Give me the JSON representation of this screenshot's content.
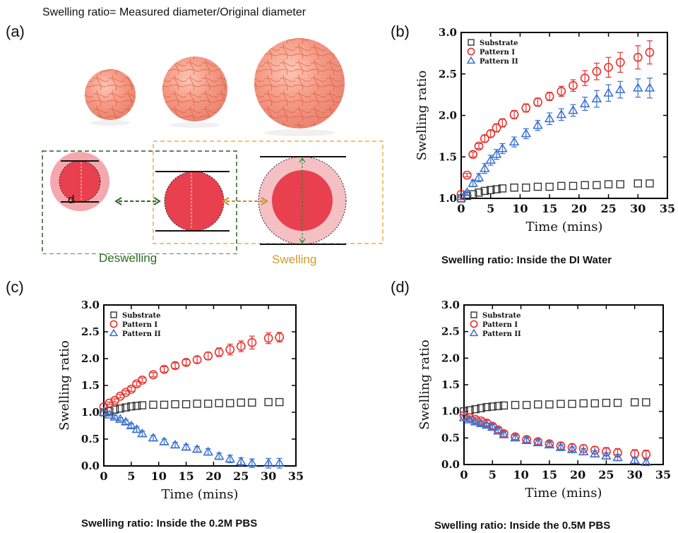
{
  "figure": {
    "panel_a": {
      "letter": "(a)",
      "title": "Swelling ratio= Measured diameter/Original diameter",
      "diameter_label": "d",
      "deswelling_label": "Deswelling",
      "swelling_label": "Swelling",
      "colors": {
        "deswelling_box": "#2e5e22",
        "swelling_box": "#e8b23a",
        "gel_core": "#e8404e",
        "gel_halo": "#f4a8ae"
      }
    },
    "panel_b": {
      "letter": "(b)",
      "caption": "Swelling ratio: Inside the DI Water"
    },
    "panel_c": {
      "letter": "(c)",
      "caption": "Swelling ratio: Inside the 0.2M PBS"
    },
    "panel_d": {
      "letter": "(d)",
      "caption": "Swelling ratio: Inside the 0.5M PBS"
    }
  },
  "chart_data": [
    {
      "panel": "b",
      "type": "scatter",
      "title": "",
      "xlabel": "Time (mins)",
      "ylabel": "Swelling ratio",
      "xlim": [
        0,
        35
      ],
      "ylim": [
        1.0,
        3.0
      ],
      "xticks": [
        0,
        5,
        10,
        15,
        20,
        25,
        30,
        35
      ],
      "yticks": [
        1.0,
        1.5,
        2.0,
        2.5,
        3.0
      ],
      "legend_position": "top-left",
      "series": [
        {
          "name": "Substrate",
          "marker": "square",
          "color": "#333333",
          "x": [
            0,
            1,
            2,
            3,
            4,
            5,
            6,
            7,
            9,
            11,
            13,
            15,
            17,
            19,
            21,
            23,
            25,
            27,
            30,
            32
          ],
          "y": [
            1.0,
            1.03,
            1.05,
            1.07,
            1.09,
            1.1,
            1.11,
            1.12,
            1.13,
            1.13,
            1.14,
            1.14,
            1.15,
            1.15,
            1.16,
            1.16,
            1.17,
            1.17,
            1.18,
            1.18
          ],
          "err": [
            0,
            0,
            0,
            0,
            0,
            0,
            0,
            0,
            0,
            0,
            0,
            0,
            0,
            0,
            0,
            0,
            0,
            0,
            0,
            0
          ]
        },
        {
          "name": "Pattern I",
          "marker": "circle",
          "color": "#e8322e",
          "x": [
            0,
            1,
            2,
            3,
            4,
            5,
            6,
            7,
            9,
            11,
            13,
            15,
            17,
            19,
            21,
            23,
            25,
            27,
            30,
            32
          ],
          "y": [
            1.05,
            1.28,
            1.53,
            1.63,
            1.72,
            1.78,
            1.85,
            1.91,
            2.01,
            2.09,
            2.16,
            2.23,
            2.29,
            2.36,
            2.45,
            2.53,
            2.58,
            2.64,
            2.7,
            2.76
          ],
          "err": [
            0,
            0.02,
            0.03,
            0.03,
            0.04,
            0.04,
            0.05,
            0.05,
            0.05,
            0.05,
            0.05,
            0.05,
            0.06,
            0.07,
            0.09,
            0.1,
            0.12,
            0.12,
            0.14,
            0.14
          ]
        },
        {
          "name": "Pattern II",
          "marker": "triangle",
          "color": "#3a6fd0",
          "x": [
            0,
            1,
            2,
            3,
            4,
            5,
            6,
            7,
            9,
            11,
            13,
            15,
            17,
            19,
            21,
            23,
            25,
            27,
            30,
            32
          ],
          "y": [
            1.02,
            1.07,
            1.18,
            1.25,
            1.36,
            1.46,
            1.53,
            1.6,
            1.68,
            1.78,
            1.88,
            1.96,
            2.01,
            2.06,
            2.14,
            2.2,
            2.27,
            2.31,
            2.33,
            2.33
          ],
          "err": [
            0,
            0.02,
            0.04,
            0.05,
            0.06,
            0.06,
            0.06,
            0.06,
            0.06,
            0.06,
            0.06,
            0.07,
            0.07,
            0.07,
            0.08,
            0.1,
            0.1,
            0.1,
            0.11,
            0.12
          ]
        }
      ]
    },
    {
      "panel": "c",
      "type": "scatter",
      "title": "",
      "xlabel": "Time (mins)",
      "ylabel": "Swelling ratio",
      "xlim": [
        0,
        35
      ],
      "ylim": [
        0.0,
        3.0
      ],
      "xticks": [
        0,
        5,
        10,
        15,
        20,
        25,
        30,
        35
      ],
      "yticks": [
        0.0,
        0.5,
        1.0,
        1.5,
        2.0,
        2.5,
        3.0
      ],
      "legend_position": "top-left",
      "series": [
        {
          "name": "Substrate",
          "marker": "square",
          "color": "#333333",
          "x": [
            0,
            1,
            2,
            3,
            4,
            5,
            6,
            7,
            9,
            11,
            13,
            15,
            17,
            19,
            21,
            23,
            25,
            27,
            30,
            32
          ],
          "y": [
            1.0,
            1.02,
            1.05,
            1.07,
            1.09,
            1.11,
            1.12,
            1.13,
            1.14,
            1.14,
            1.15,
            1.15,
            1.16,
            1.16,
            1.17,
            1.17,
            1.18,
            1.18,
            1.19,
            1.19
          ],
          "err": [
            0,
            0,
            0,
            0,
            0,
            0,
            0,
            0,
            0,
            0,
            0,
            0,
            0,
            0,
            0,
            0,
            0,
            0,
            0,
            0
          ]
        },
        {
          "name": "Pattern I",
          "marker": "circle",
          "color": "#e8322e",
          "x": [
            0,
            1,
            2,
            3,
            4,
            5,
            6,
            7,
            9,
            11,
            13,
            15,
            17,
            19,
            21,
            23,
            25,
            27,
            30,
            32
          ],
          "y": [
            1.1,
            1.17,
            1.22,
            1.3,
            1.37,
            1.43,
            1.53,
            1.6,
            1.7,
            1.8,
            1.87,
            1.93,
            1.98,
            2.05,
            2.12,
            2.17,
            2.23,
            2.3,
            2.38,
            2.4
          ],
          "err": [
            0,
            0.02,
            0.03,
            0.03,
            0.03,
            0.04,
            0.04,
            0.04,
            0.04,
            0.05,
            0.05,
            0.05,
            0.06,
            0.07,
            0.08,
            0.1,
            0.1,
            0.12,
            0.1,
            0.09
          ]
        },
        {
          "name": "Pattern II",
          "marker": "triangle",
          "color": "#3a6fd0",
          "x": [
            0,
            1,
            2,
            3,
            4,
            5,
            6,
            7,
            9,
            11,
            13,
            15,
            17,
            19,
            21,
            23,
            25,
            27,
            30,
            32
          ],
          "y": [
            1.0,
            0.95,
            0.91,
            0.87,
            0.82,
            0.75,
            0.68,
            0.6,
            0.52,
            0.45,
            0.39,
            0.35,
            0.31,
            0.26,
            0.18,
            0.13,
            0.08,
            0.05,
            0.05,
            0.05
          ],
          "err": [
            0,
            0.02,
            0.03,
            0.03,
            0.04,
            0.04,
            0.05,
            0.05,
            0.05,
            0.05,
            0.05,
            0.05,
            0.05,
            0.06,
            0.06,
            0.07,
            0.07,
            0.08,
            0.09,
            0.09
          ]
        }
      ]
    },
    {
      "panel": "d",
      "type": "scatter",
      "title": "",
      "xlabel": "Time (mins)",
      "ylabel": "Swelling ratio",
      "xlim": [
        0,
        35
      ],
      "ylim": [
        0.0,
        3.0
      ],
      "xticks": [
        0,
        5,
        10,
        15,
        20,
        25,
        30,
        35
      ],
      "yticks": [
        0.0,
        0.5,
        1.0,
        1.5,
        2.0,
        2.5,
        3.0
      ],
      "legend_position": "top-left",
      "series": [
        {
          "name": "Substrate",
          "marker": "square",
          "color": "#333333",
          "x": [
            0,
            1,
            2,
            3,
            4,
            5,
            6,
            7,
            9,
            11,
            13,
            15,
            17,
            19,
            21,
            23,
            25,
            27,
            30,
            32
          ],
          "y": [
            1.0,
            1.02,
            1.04,
            1.06,
            1.08,
            1.09,
            1.1,
            1.11,
            1.12,
            1.12,
            1.13,
            1.13,
            1.14,
            1.14,
            1.15,
            1.15,
            1.16,
            1.16,
            1.17,
            1.17
          ],
          "err": [
            0,
            0,
            0,
            0,
            0,
            0,
            0,
            0,
            0,
            0,
            0,
            0,
            0,
            0,
            0,
            0,
            0,
            0,
            0,
            0
          ]
        },
        {
          "name": "Pattern I",
          "marker": "circle",
          "color": "#e8322e",
          "x": [
            0,
            1,
            2,
            3,
            4,
            5,
            6,
            7,
            9,
            11,
            13,
            15,
            17,
            19,
            21,
            23,
            25,
            27,
            30,
            32
          ],
          "y": [
            0.92,
            0.88,
            0.85,
            0.82,
            0.78,
            0.72,
            0.65,
            0.58,
            0.52,
            0.47,
            0.43,
            0.39,
            0.35,
            0.32,
            0.3,
            0.27,
            0.24,
            0.22,
            0.2,
            0.19
          ],
          "err": [
            0,
            0.03,
            0.04,
            0.04,
            0.05,
            0.05,
            0.05,
            0.05,
            0.05,
            0.05,
            0.05,
            0.05,
            0.06,
            0.06,
            0.07,
            0.07,
            0.08,
            0.08,
            0.08,
            0.08
          ]
        },
        {
          "name": "Pattern II",
          "marker": "triangle",
          "color": "#3a6fd0",
          "x": [
            0,
            1,
            2,
            3,
            4,
            5,
            6,
            7,
            9,
            11,
            13,
            15,
            17,
            19,
            21,
            23,
            25,
            27,
            30,
            32
          ],
          "y": [
            0.88,
            0.84,
            0.8,
            0.77,
            0.74,
            0.7,
            0.63,
            0.56,
            0.5,
            0.45,
            0.41,
            0.37,
            0.32,
            0.28,
            0.24,
            0.2,
            0.16,
            0.13,
            0.08,
            0.04
          ],
          "err": [
            0,
            0.03,
            0.04,
            0.04,
            0.04,
            0.05,
            0.05,
            0.05,
            0.05,
            0.05,
            0.05,
            0.05,
            0.05,
            0.05,
            0.06,
            0.06,
            0.06,
            0.06,
            0.06,
            0.06
          ]
        }
      ]
    }
  ]
}
